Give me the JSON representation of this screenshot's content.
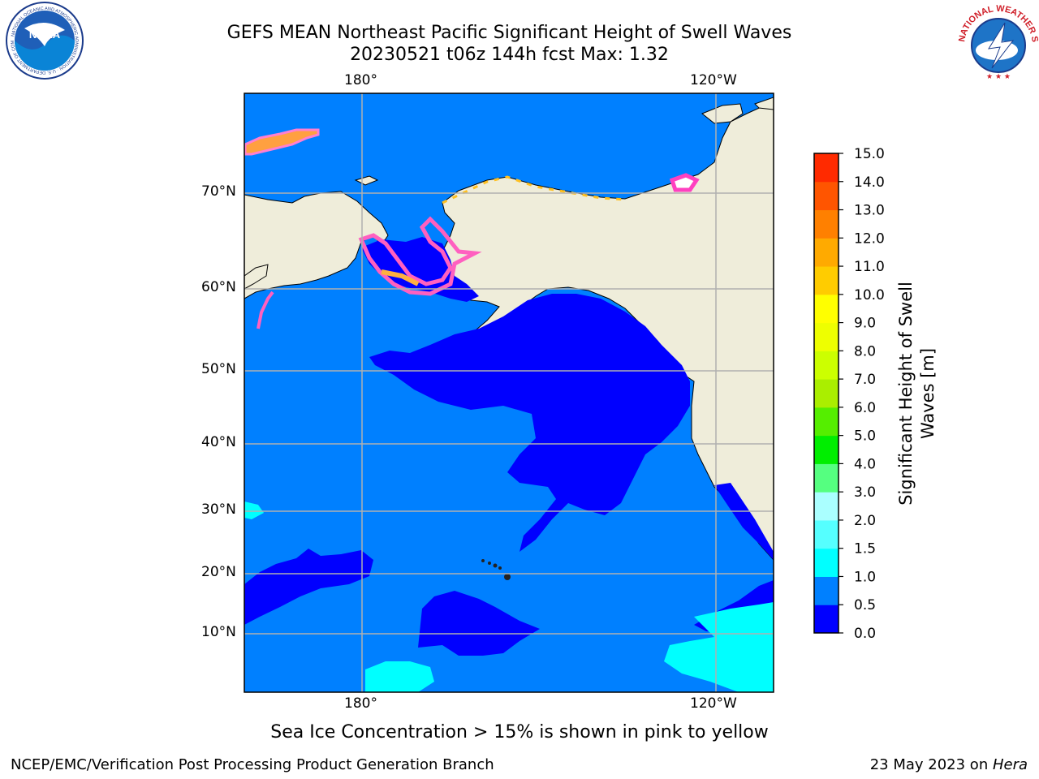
{
  "header": {
    "title_line1": "GEFS MEAN Northeast Pacific Significant Height of Swell Waves",
    "title_line2": "20230521 t06z 144h fcst   Max: 1.32"
  },
  "logos": {
    "noaa": {
      "text": "NOAA",
      "ring_text": "NATIONAL OCEANIC AND ATMOSPHERIC ADMINISTRATION · U.S. DEPARTMENT OF COMMERCE"
    },
    "nws": {
      "ring_text": "NATIONAL WEATHER SERVICE"
    }
  },
  "map": {
    "lon_labels_top": [
      "180°",
      "120°W"
    ],
    "lon_labels_bottom": [
      "180°",
      "120°W"
    ],
    "lat_labels": [
      "70°N",
      "60°N",
      "50°N",
      "40°N",
      "30°N",
      "20°N",
      "10°N"
    ],
    "colors": {
      "land": "#efedda",
      "wave_0_05": "#0000ff",
      "wave_05_10": "#0080ff",
      "wave_10_15": "#00ffff",
      "grid": "#b0b0b0"
    }
  },
  "colorbar": {
    "label_line1": "Significant Height of Swell",
    "label_line2": "Waves [m]",
    "ticks": [
      "0.0",
      "0.5",
      "1.0",
      "1.5",
      "2.0",
      "3.0",
      "4.0",
      "5.0",
      "6.0",
      "7.0",
      "8.0",
      "9.0",
      "10.0",
      "11.0",
      "12.0",
      "13.0",
      "14.0",
      "15.0"
    ],
    "colors": [
      "#0000ff",
      "#0080ff",
      "#00ffff",
      "#55ffff",
      "#aaffff",
      "#55ff80",
      "#00ee00",
      "#55ee00",
      "#aaee00",
      "#ccff00",
      "#eeff00",
      "#ffff00",
      "#ffcc00",
      "#ffaa00",
      "#ff8000",
      "#ff5500",
      "#ff2a00",
      "#ff0000"
    ]
  },
  "notes": {
    "sea_ice": "Sea Ice Concentration > 15% is shown in pink to yellow"
  },
  "footer": {
    "left": "NCEP/EMC/Verification Post Processing Product Generation Branch",
    "right_prefix": "23 May 2023 on ",
    "right_host": "Hera"
  }
}
